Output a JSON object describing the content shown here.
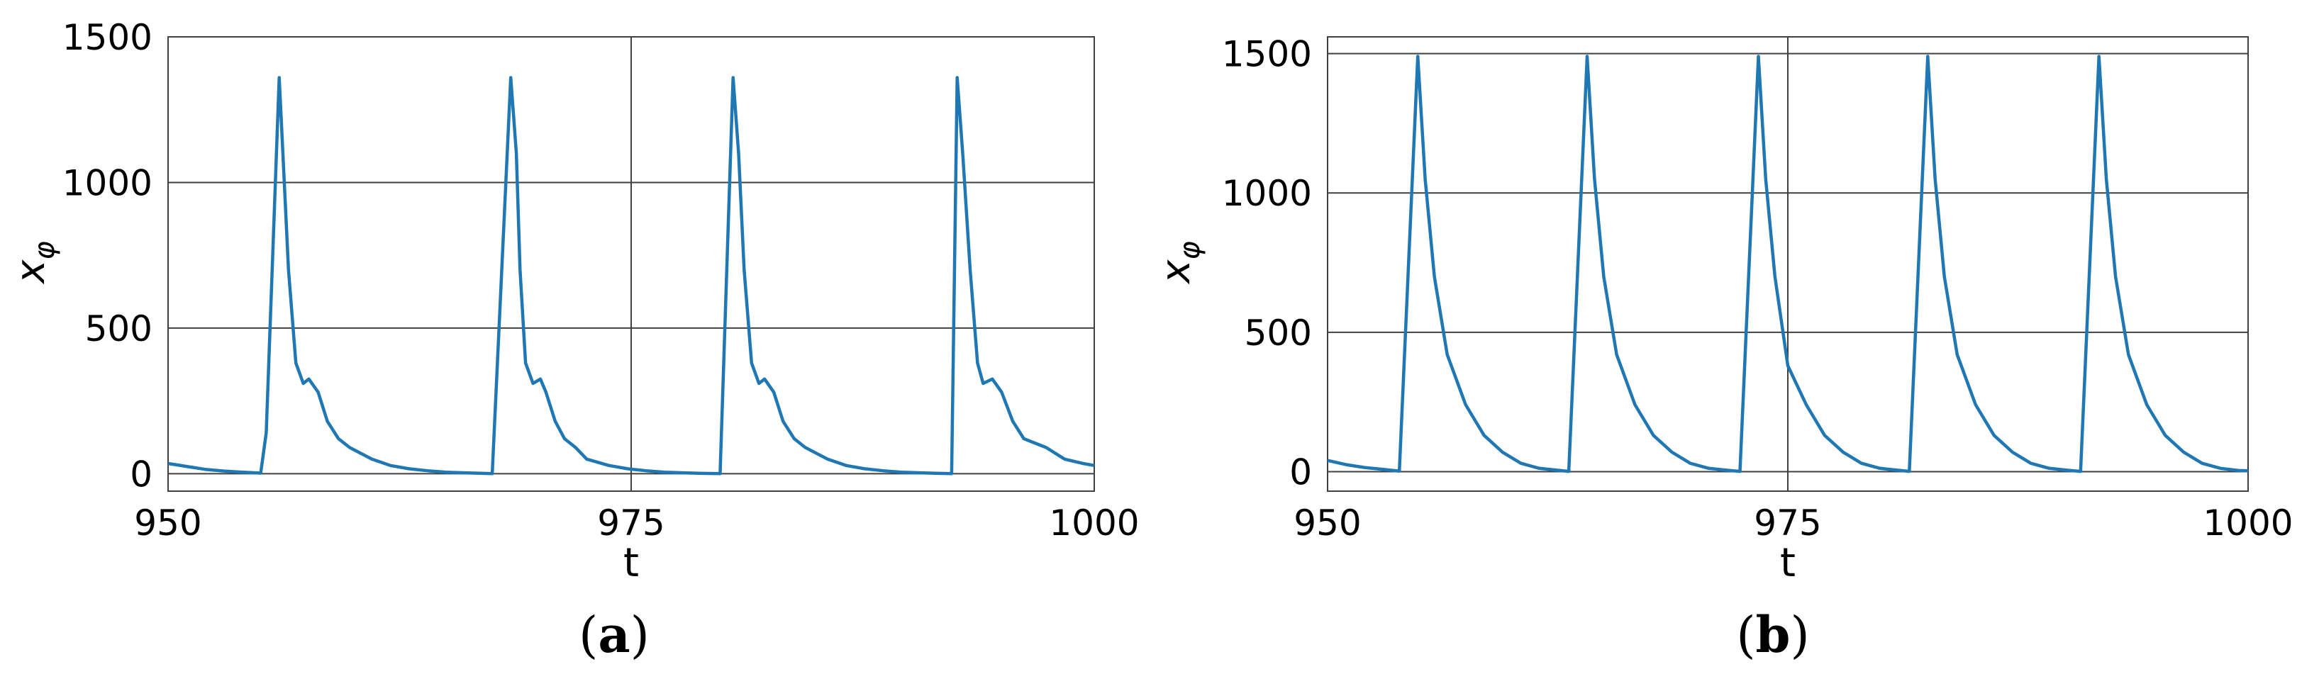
{
  "chart_data": [
    {
      "type": "line",
      "panel_label": "(a)",
      "xlabel": "t",
      "ylabel": "x",
      "ylabel_subscript": "φ",
      "xlim": [
        950,
        1000
      ],
      "ylim": [
        -60,
        1500
      ],
      "xticks": [
        "950",
        "975",
        "1000"
      ],
      "yticks": [
        "0",
        "500",
        "1000",
        "1500"
      ],
      "grid": true,
      "series": [
        {
          "color": "#1f77b4",
          "x": [
            950,
            951,
            952,
            953,
            954,
            955,
            955.3,
            956,
            956.2,
            956.5,
            956.9,
            957.3,
            957.6,
            958.1,
            958.6,
            959.2,
            959.8,
            961,
            962,
            963,
            964,
            965,
            966,
            967,
            967.5,
            968.5,
            968.8,
            969,
            969.3,
            969.7,
            970.1,
            970.4,
            970.9,
            971.4,
            972,
            972.6,
            973.8,
            974.8,
            975.8,
            976.8,
            977.8,
            978.8,
            979.8,
            980.5,
            980.8,
            981.1,
            981.5,
            981.9,
            982.2,
            982.7,
            983.2,
            983.8,
            984.4,
            985.6,
            986.6,
            987.6,
            988.6,
            989.6,
            990.6,
            991.6,
            992.3,
            992.6,
            992.9,
            993.3,
            993.7,
            994,
            994.5,
            995,
            995.6,
            996.2,
            997.4,
            998.4,
            999.4,
            1000
          ],
          "y": [
            35,
            25,
            15,
            9,
            5,
            2,
            140,
            1360,
            1100,
            700,
            380,
            310,
            325,
            280,
            180,
            120,
            90,
            50,
            28,
            17,
            10,
            5,
            3,
            1,
            0,
            1360,
            1100,
            700,
            380,
            310,
            325,
            280,
            180,
            120,
            90,
            50,
            28,
            17,
            10,
            5,
            3,
            1,
            0,
            1360,
            1100,
            700,
            380,
            310,
            325,
            280,
            180,
            120,
            90,
            50,
            28,
            17,
            10,
            5,
            3,
            1,
            0,
            1360,
            1100,
            700,
            380,
            310,
            325,
            280,
            180,
            120,
            90,
            50,
            35,
            28
          ]
        }
      ]
    },
    {
      "type": "line",
      "panel_label": "(b)",
      "xlabel": "t",
      "ylabel": "x",
      "ylabel_subscript": "φ",
      "xlim": [
        950,
        1000
      ],
      "ylim": [
        -70,
        1560
      ],
      "xticks": [
        "950",
        "975",
        "1000"
      ],
      "yticks": [
        "0",
        "500",
        "1000",
        "1500"
      ],
      "grid": true,
      "series": [
        {
          "color": "#1f77b4",
          "x": [
            950,
            951,
            952,
            953,
            953.9,
            954.9,
            955.3,
            955.8,
            956.5,
            957.5,
            958.5,
            959.5,
            960.5,
            961.5,
            962.5,
            963.1,
            964.1,
            964.5,
            965,
            965.7,
            966.7,
            967.7,
            968.7,
            969.7,
            970.7,
            971.7,
            972.4,
            973.4,
            973.8,
            974.3,
            975,
            976,
            977,
            978,
            979,
            980,
            981,
            981.6,
            982.6,
            983,
            983.5,
            984.2,
            985.2,
            986.2,
            987.2,
            988.2,
            989.2,
            990.2,
            990.9,
            991.9,
            992.3,
            992.8,
            993.5,
            994.5,
            995.5,
            996.5,
            997.5,
            998.5,
            999.5,
            1000
          ],
          "y": [
            40,
            25,
            15,
            8,
            2,
            1490,
            1050,
            700,
            420,
            240,
            130,
            70,
            30,
            12,
            5,
            1,
            1490,
            1050,
            700,
            420,
            240,
            130,
            70,
            30,
            12,
            5,
            1,
            1490,
            1050,
            700,
            380,
            240,
            130,
            70,
            30,
            12,
            5,
            1,
            1490,
            1050,
            700,
            420,
            240,
            130,
            70,
            30,
            12,
            5,
            1,
            1490,
            1050,
            700,
            420,
            240,
            130,
            70,
            30,
            12,
            4,
            3
          ]
        }
      ]
    }
  ]
}
